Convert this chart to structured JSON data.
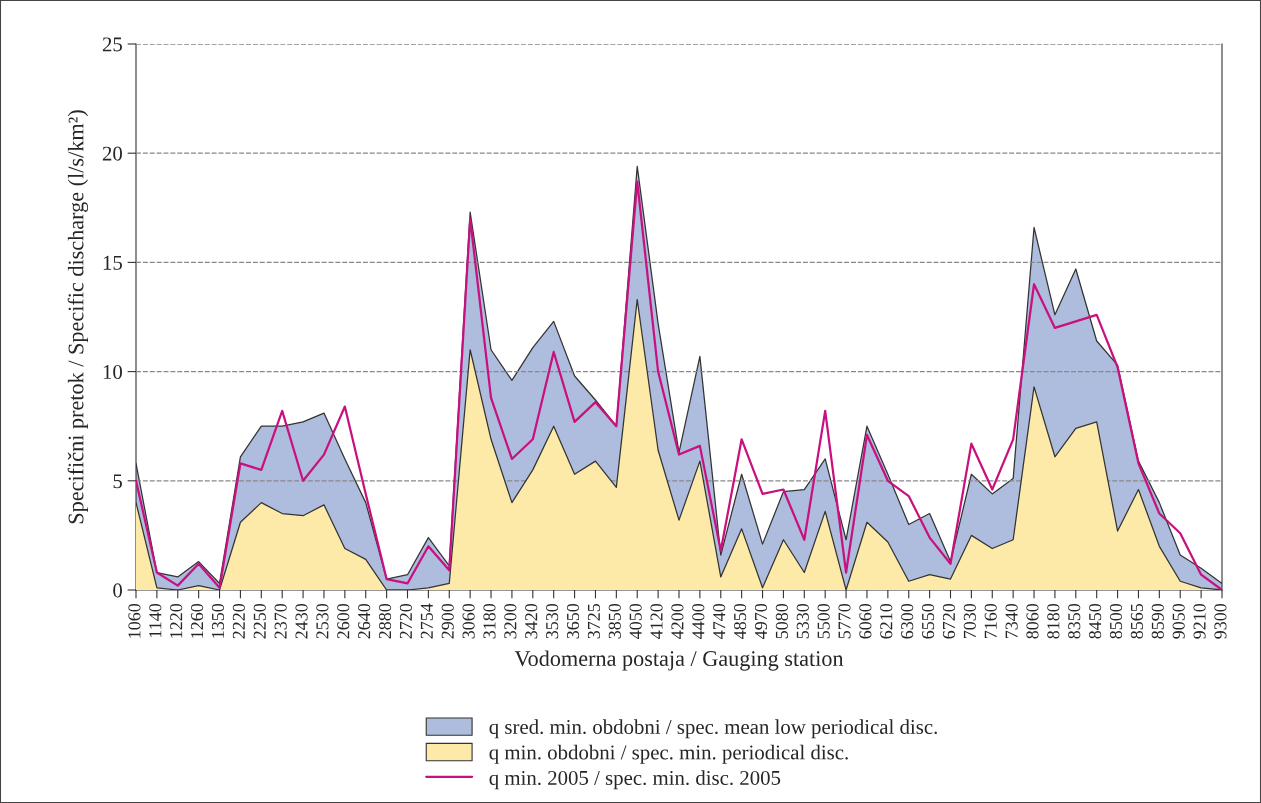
{
  "chart_data": {
    "type": "area",
    "xlabel": "Vodomerna postaja / Gauging station",
    "ylabel": "Specifični pretok / Specific discharge (l/s/km²)",
    "categories": [
      "1060",
      "1140",
      "1220",
      "1260",
      "1350",
      "2220",
      "2250",
      "2370",
      "2430",
      "2530",
      "2600",
      "2640",
      "2880",
      "2720",
      "2754",
      "2900",
      "3060",
      "3180",
      "3200",
      "3420",
      "3530",
      "3650",
      "3725",
      "3850",
      "4050",
      "4120",
      "4200",
      "4400",
      "4740",
      "4850",
      "4970",
      "5080",
      "5330",
      "5500",
      "5770",
      "6060",
      "6210",
      "6300",
      "6550",
      "6720",
      "7030",
      "7160",
      "7340",
      "8060",
      "8180",
      "8350",
      "8450",
      "8500",
      "8565",
      "8590",
      "9050",
      "9210",
      "9300"
    ],
    "series": [
      {
        "name": "q sred. min. obdobni / spec. mean low periodical disc.",
        "color": "#aebcdd",
        "values": [
          5.8,
          0.8,
          0.6,
          1.3,
          0.3,
          6.1,
          7.5,
          7.5,
          7.7,
          8.1,
          6.0,
          4.0,
          0.5,
          0.7,
          2.4,
          1.1,
          17.3,
          11.0,
          9.6,
          11.1,
          12.3,
          9.8,
          8.7,
          7.5,
          19.4,
          12.2,
          6.3,
          10.7,
          1.6,
          5.3,
          2.1,
          4.5,
          4.6,
          6.0,
          2.3,
          7.5,
          5.3,
          3.0,
          3.5,
          1.3,
          5.3,
          4.4,
          5.1,
          16.6,
          12.6,
          14.7,
          11.4,
          10.3,
          5.9,
          4.0,
          1.6,
          1.0,
          0.3
        ]
      },
      {
        "name": "q min. obdobni / spec. min. periodical disc.",
        "color": "#feeaa8",
        "values": [
          4.0,
          0.1,
          0.0,
          0.2,
          0.0,
          3.1,
          4.0,
          3.5,
          3.4,
          3.9,
          1.9,
          1.4,
          0.0,
          0.0,
          0.1,
          0.3,
          11.0,
          6.9,
          4.0,
          5.5,
          7.5,
          5.3,
          5.9,
          4.7,
          13.3,
          6.4,
          3.2,
          5.9,
          0.6,
          2.8,
          0.1,
          2.3,
          0.8,
          3.6,
          0.0,
          3.1,
          2.2,
          0.4,
          0.7,
          0.5,
          2.5,
          1.9,
          2.3,
          9.3,
          6.1,
          7.4,
          7.7,
          2.7,
          4.6,
          2.0,
          0.4,
          0.1,
          0.0
        ]
      },
      {
        "name": "q min. 2005 / spec. min. disc. 2005",
        "type": "line",
        "color": "#c8107f",
        "values": [
          5.0,
          0.8,
          0.2,
          1.2,
          0.1,
          5.8,
          5.5,
          8.2,
          5.0,
          6.2,
          8.4,
          4.4,
          0.5,
          0.3,
          2.0,
          0.9,
          17.0,
          8.8,
          6.0,
          6.9,
          10.9,
          7.7,
          8.6,
          7.5,
          18.7,
          10.0,
          6.2,
          6.6,
          1.8,
          6.9,
          4.4,
          4.6,
          2.3,
          8.2,
          0.8,
          7.1,
          5.0,
          4.3,
          2.4,
          1.2,
          6.7,
          4.6,
          6.9,
          14.0,
          12.0,
          12.3,
          12.6,
          10.2,
          5.8,
          3.5,
          2.6,
          0.7,
          0.0
        ]
      }
    ],
    "ylim": [
      0,
      25
    ],
    "yticks": [
      0,
      5,
      10,
      15,
      20,
      25
    ],
    "grid": "y",
    "legend": "bottom",
    "line_style": "solid",
    "marker": "none"
  }
}
